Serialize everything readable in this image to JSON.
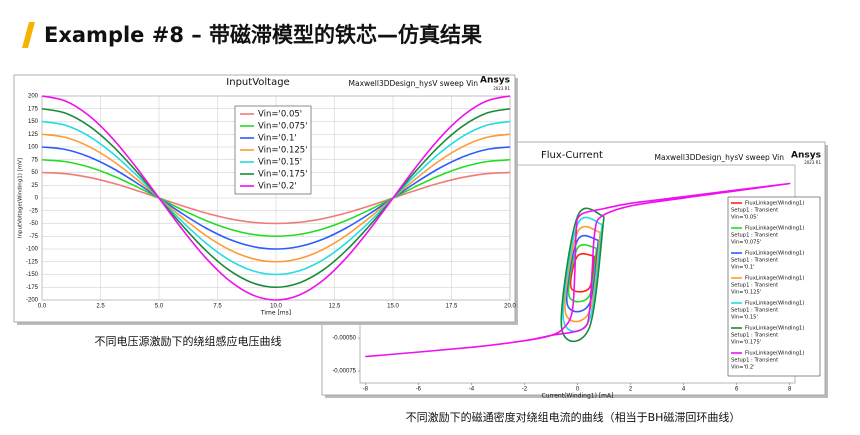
{
  "title": "Example #8 – 带磁滞模型的铁芯—仿真结果",
  "captions": [
    "不同电压源激励下的绕组感应电压曲线",
    "不同激励下的磁通密度对绕组电流的曲线（相当于BH磁滞回环曲线）"
  ],
  "chart_data": [
    {
      "type": "line",
      "title": "InputVoltage",
      "subtitle": "Maxwell3DDesign_hysV sweep Vin",
      "brand": "Ansys",
      "version": "2023 R1",
      "x_label": "Time [ms]",
      "y_label": "InputVoltage(Winding1) [mV]",
      "xlim": [
        0,
        20
      ],
      "ylim": [
        -200,
        200
      ],
      "grid": true,
      "xticks": [
        {
          "value": 0,
          "label": "0.0"
        },
        {
          "value": 2.5,
          "label": "2.5"
        },
        {
          "value": 5,
          "label": "5.0"
        },
        {
          "value": 7.5,
          "label": "7.5"
        },
        {
          "value": 10,
          "label": "10.0"
        },
        {
          "value": 12.5,
          "label": "12.5"
        },
        {
          "value": 15,
          "label": "15.0"
        },
        {
          "value": 17.5,
          "label": "17.5"
        },
        {
          "value": 20,
          "label": "20.0"
        }
      ],
      "yticks": [
        -200,
        -175,
        -150,
        -125,
        -100,
        -75,
        -50,
        -25,
        0,
        25,
        50,
        75,
        100,
        125,
        150,
        175,
        200
      ],
      "x": [
        0,
        1,
        2,
        3,
        4,
        5,
        6,
        7,
        8,
        9,
        10,
        11,
        12,
        13,
        14,
        15,
        16,
        17,
        18,
        19,
        20
      ],
      "series": [
        {
          "name": "Vin='0.05'",
          "color": "#f07a7a",
          "values": [
            50,
            47.6,
            40.5,
            29.4,
            15.5,
            0,
            -15.5,
            -29.4,
            -40.5,
            -47.6,
            -50,
            -47.6,
            -40.5,
            -29.4,
            -15.5,
            0,
            15.5,
            29.4,
            40.5,
            47.6,
            50
          ]
        },
        {
          "name": "Vin='0.075'",
          "color": "#22dd22",
          "values": [
            75,
            71.3,
            60.7,
            44.1,
            23.2,
            0,
            -23.2,
            -44.1,
            -60.7,
            -71.3,
            -75,
            -71.3,
            -60.7,
            -44.1,
            -23.2,
            0,
            23.2,
            44.1,
            60.7,
            71.3,
            75
          ]
        },
        {
          "name": "Vin='0.1'",
          "color": "#2a5cff",
          "values": [
            100,
            95.1,
            80.9,
            58.8,
            30.9,
            0,
            -30.9,
            -58.8,
            -80.9,
            -95.1,
            -100,
            -95.1,
            -80.9,
            -58.8,
            -30.9,
            0,
            30.9,
            58.8,
            80.9,
            95.1,
            100
          ]
        },
        {
          "name": "Vin='0.125'",
          "color": "#ff9a33",
          "values": [
            125,
            118.9,
            101.1,
            73.5,
            38.6,
            0,
            -38.6,
            -73.5,
            -101.1,
            -118.9,
            -125,
            -118.9,
            -101.1,
            -73.5,
            -38.6,
            0,
            38.6,
            73.5,
            101.1,
            118.9,
            125
          ]
        },
        {
          "name": "Vin='0.15'",
          "color": "#22dde0",
          "values": [
            150,
            142.7,
            121.4,
            88.2,
            46.4,
            0,
            -46.4,
            -88.2,
            -121.4,
            -142.7,
            -150,
            -142.7,
            -121.4,
            -88.2,
            -46.4,
            0,
            46.4,
            88.2,
            121.4,
            142.7,
            150
          ]
        },
        {
          "name": "Vin='0.175'",
          "color": "#1a8a3a",
          "values": [
            175,
            166.4,
            141.6,
            102.9,
            54.1,
            0,
            -54.1,
            -102.9,
            -141.6,
            -166.4,
            -175,
            -166.4,
            -141.6,
            -102.9,
            -54.1,
            0,
            54.1,
            102.9,
            141.6,
            166.4,
            175
          ]
        },
        {
          "name": "Vin='0.2'",
          "color": "#ee11ee",
          "values": [
            200,
            190.2,
            161.8,
            117.6,
            61.8,
            0,
            -61.8,
            -117.6,
            -161.8,
            -190.2,
            -200,
            -190.2,
            -161.8,
            -117.6,
            -61.8,
            0,
            61.8,
            117.6,
            161.8,
            190.2,
            200
          ]
        }
      ]
    },
    {
      "type": "line",
      "title": "Flux-Current",
      "subtitle": "Maxwell3DDesign_hysV sweep Vin",
      "brand": "Ansys",
      "version": "2023 R1",
      "x_label": "Current(Winding1) [mA]",
      "xlim": [
        -8.2,
        8.2
      ],
      "ylim": [
        -0.00084,
        0.00081
      ],
      "grid": false,
      "xticks": [
        -8,
        -6,
        -4,
        -2,
        0,
        2,
        4,
        6,
        8
      ],
      "yticks": [
        {
          "value": -0.0005,
          "label": "-0.00050"
        },
        {
          "value": -0.00075,
          "label": "-0.00075"
        }
      ],
      "legend_header": [
        "FluxLinkage(Winding1)",
        "Setup1 : Transient"
      ],
      "series": [
        {
          "name": "Vin='0.05'",
          "color": "#ff2020",
          "x": [
            0.64,
            0,
            -0.24,
            0.45,
            0.64
          ],
          "values": [
            0.00012,
            0.00012,
            -0.00012,
            -0.00012,
            0.00012
          ]
        },
        {
          "name": "Vin='0.075'",
          "color": "#22dd22",
          "x": [
            0.72,
            0,
            -0.32,
            0.45,
            0.72
          ],
          "values": [
            0.00018,
            0.00018,
            -0.00018,
            -0.00018,
            0.00018
          ]
        },
        {
          "name": "Vin='0.1'",
          "color": "#2a5cff",
          "x": [
            0.79,
            0,
            -0.39,
            0.45,
            0.79
          ],
          "values": [
            0.00024,
            0.00024,
            -0.00024,
            -0.00024,
            0.00024
          ]
        },
        {
          "name": "Vin='0.125'",
          "color": "#ff9a33",
          "x": [
            0.86,
            0,
            -0.46,
            0.45,
            0.86
          ],
          "values": [
            0.0003,
            0.0003,
            -0.0003,
            -0.0003,
            0.0003
          ]
        },
        {
          "name": "Vin='0.15'",
          "color": "#22dde0",
          "x": [
            0.93,
            0,
            -0.53,
            0.45,
            0.93
          ],
          "values": [
            0.00036,
            0.00036,
            -0.00036,
            -0.00036,
            0.00036
          ]
        },
        {
          "name": "Vin='0.175'",
          "color": "#1a8a3a",
          "x": [
            1.0,
            0,
            -0.6,
            0.45,
            1.0
          ],
          "values": [
            0.00042,
            0.00042,
            -0.00042,
            -0.00042,
            0.00042
          ]
        },
        {
          "name": "Vin='0.2'",
          "color": "#ee11ee",
          "x": [
            -8,
            -4,
            -2,
            -1,
            0.2,
            0.45,
            0.55,
            0.65,
            0.9,
            2,
            4,
            8,
            4,
            2,
            1,
            0.1,
            -0.05,
            -0.1,
            -0.2,
            -0.5,
            -1,
            -2,
            -4,
            -8
          ],
          "values": [
            -0.00064,
            -0.00057,
            -0.00052,
            -0.00048,
            -0.00043,
            -0.0003,
            0,
            0.0003,
            0.00042,
            0.0005,
            0.00056,
            0.00067,
            0.00057,
            0.00052,
            0.00048,
            0.00043,
            0.0003,
            0,
            -0.0003,
            -0.00042,
            -0.00048,
            -0.00052,
            -0.00057,
            -0.00064
          ]
        }
      ]
    }
  ]
}
